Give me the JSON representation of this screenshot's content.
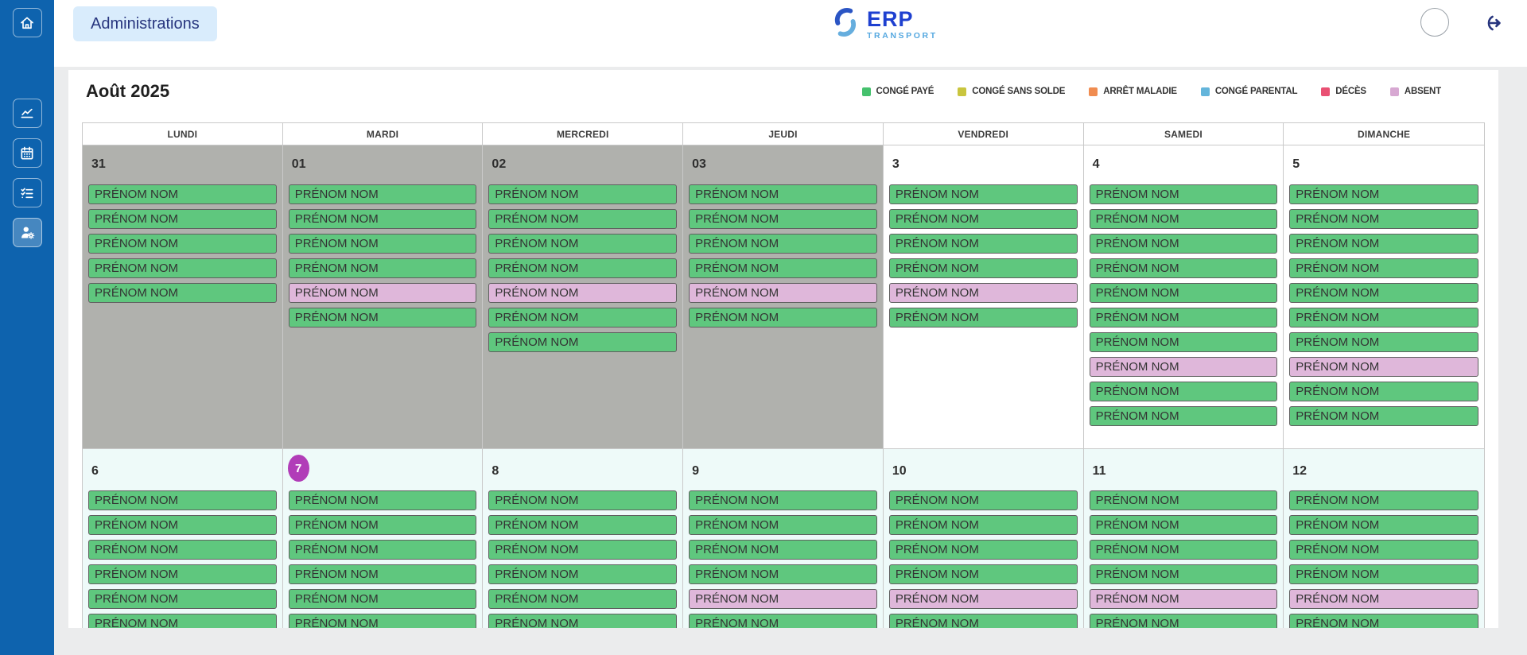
{
  "header": {
    "nav_button": "Administrations",
    "logo": {
      "title": "ERP",
      "subtitle": "TRANSPORT"
    }
  },
  "sidebar": {
    "icons": [
      {
        "name": "home-icon",
        "active": false
      },
      {
        "name": "chart-line-icon",
        "active": false
      },
      {
        "name": "calendar-icon",
        "active": false
      },
      {
        "name": "checklist-icon",
        "active": false
      },
      {
        "name": "users-gear-icon",
        "active": true
      }
    ]
  },
  "colors": {
    "sidebar_bg": "#0e63ae",
    "sidebar_active_bg": "#4687c0",
    "page_bg": "#ebeced",
    "muted_cell_bg": "#b0b1ad",
    "current_week_cell_bg": "#eefaf9",
    "today_badge": "#b13db8",
    "admin_button_bg": "#d9ecfc",
    "admin_button_text": "#27357e",
    "logo_title": "#1e40d0",
    "logo_subtitle": "#55a8e0"
  },
  "calendar": {
    "month_title": "Août 2025",
    "legend": [
      {
        "label": "CONGÉ PAYÉ",
        "color": "#45c16d"
      },
      {
        "label": "CONGÉ SANS SOLDE",
        "color": "#c9c53e"
      },
      {
        "label": "ARRÊT MALADIE",
        "color": "#f08c50"
      },
      {
        "label": "CONGÉ PARENTAL",
        "color": "#64b5db"
      },
      {
        "label": "DÉCÈS",
        "color": "#e95073"
      },
      {
        "label": "ABSENT",
        "color": "#d7a8d2"
      }
    ],
    "day_headers": [
      "LUNDI",
      "MARDI",
      "MERCREDI",
      "JEUDI",
      "VENDREDI",
      "SAMEDI",
      "DIMANCHE"
    ],
    "entry_label": "PRÉNOM NOM",
    "type_colors": {
      "conge_paye": "#5fc77e",
      "absent": "#dfb7da"
    },
    "weeks": [
      {
        "cells": [
          {
            "date": "31",
            "muted": true,
            "today": false,
            "entries": [
              "conge_paye",
              "conge_paye",
              "conge_paye",
              "conge_paye",
              "conge_paye"
            ]
          },
          {
            "date": "01",
            "muted": true,
            "today": false,
            "entries": [
              "conge_paye",
              "conge_paye",
              "conge_paye",
              "conge_paye",
              "absent",
              "conge_paye"
            ]
          },
          {
            "date": "02",
            "muted": true,
            "today": false,
            "entries": [
              "conge_paye",
              "conge_paye",
              "conge_paye",
              "conge_paye",
              "absent",
              "conge_paye",
              "conge_paye"
            ]
          },
          {
            "date": "03",
            "muted": true,
            "today": false,
            "entries": [
              "conge_paye",
              "conge_paye",
              "conge_paye",
              "conge_paye",
              "absent",
              "conge_paye"
            ]
          },
          {
            "date": "3",
            "muted": false,
            "today": false,
            "entries": [
              "conge_paye",
              "conge_paye",
              "conge_paye",
              "conge_paye",
              "absent",
              "conge_paye"
            ]
          },
          {
            "date": "4",
            "muted": false,
            "today": false,
            "entries": [
              "conge_paye",
              "conge_paye",
              "conge_paye",
              "conge_paye",
              "conge_paye",
              "conge_paye",
              "conge_paye",
              "absent",
              "conge_paye",
              "conge_paye"
            ]
          },
          {
            "date": "5",
            "muted": false,
            "today": false,
            "entries": [
              "conge_paye",
              "conge_paye",
              "conge_paye",
              "conge_paye",
              "conge_paye",
              "conge_paye",
              "conge_paye",
              "absent",
              "conge_paye",
              "conge_paye"
            ]
          }
        ]
      },
      {
        "cells": [
          {
            "date": "6",
            "muted": false,
            "today": false,
            "entries": [
              "conge_paye",
              "conge_paye",
              "conge_paye",
              "conge_paye",
              "conge_paye",
              "conge_paye"
            ]
          },
          {
            "date": "7",
            "muted": false,
            "today": true,
            "entries": [
              "conge_paye",
              "conge_paye",
              "conge_paye",
              "conge_paye",
              "conge_paye",
              "conge_paye"
            ]
          },
          {
            "date": "8",
            "muted": false,
            "today": false,
            "entries": [
              "conge_paye",
              "conge_paye",
              "conge_paye",
              "conge_paye",
              "conge_paye",
              "conge_paye"
            ]
          },
          {
            "date": "9",
            "muted": false,
            "today": false,
            "entries": [
              "conge_paye",
              "conge_paye",
              "conge_paye",
              "conge_paye",
              "absent",
              "conge_paye"
            ]
          },
          {
            "date": "10",
            "muted": false,
            "today": false,
            "entries": [
              "conge_paye",
              "conge_paye",
              "conge_paye",
              "conge_paye",
              "absent",
              "conge_paye"
            ]
          },
          {
            "date": "11",
            "muted": false,
            "today": false,
            "entries": [
              "conge_paye",
              "conge_paye",
              "conge_paye",
              "conge_paye",
              "absent",
              "conge_paye"
            ]
          },
          {
            "date": "12",
            "muted": false,
            "today": false,
            "entries": [
              "conge_paye",
              "conge_paye",
              "conge_paye",
              "conge_paye",
              "absent",
              "conge_paye"
            ]
          }
        ]
      }
    ]
  }
}
